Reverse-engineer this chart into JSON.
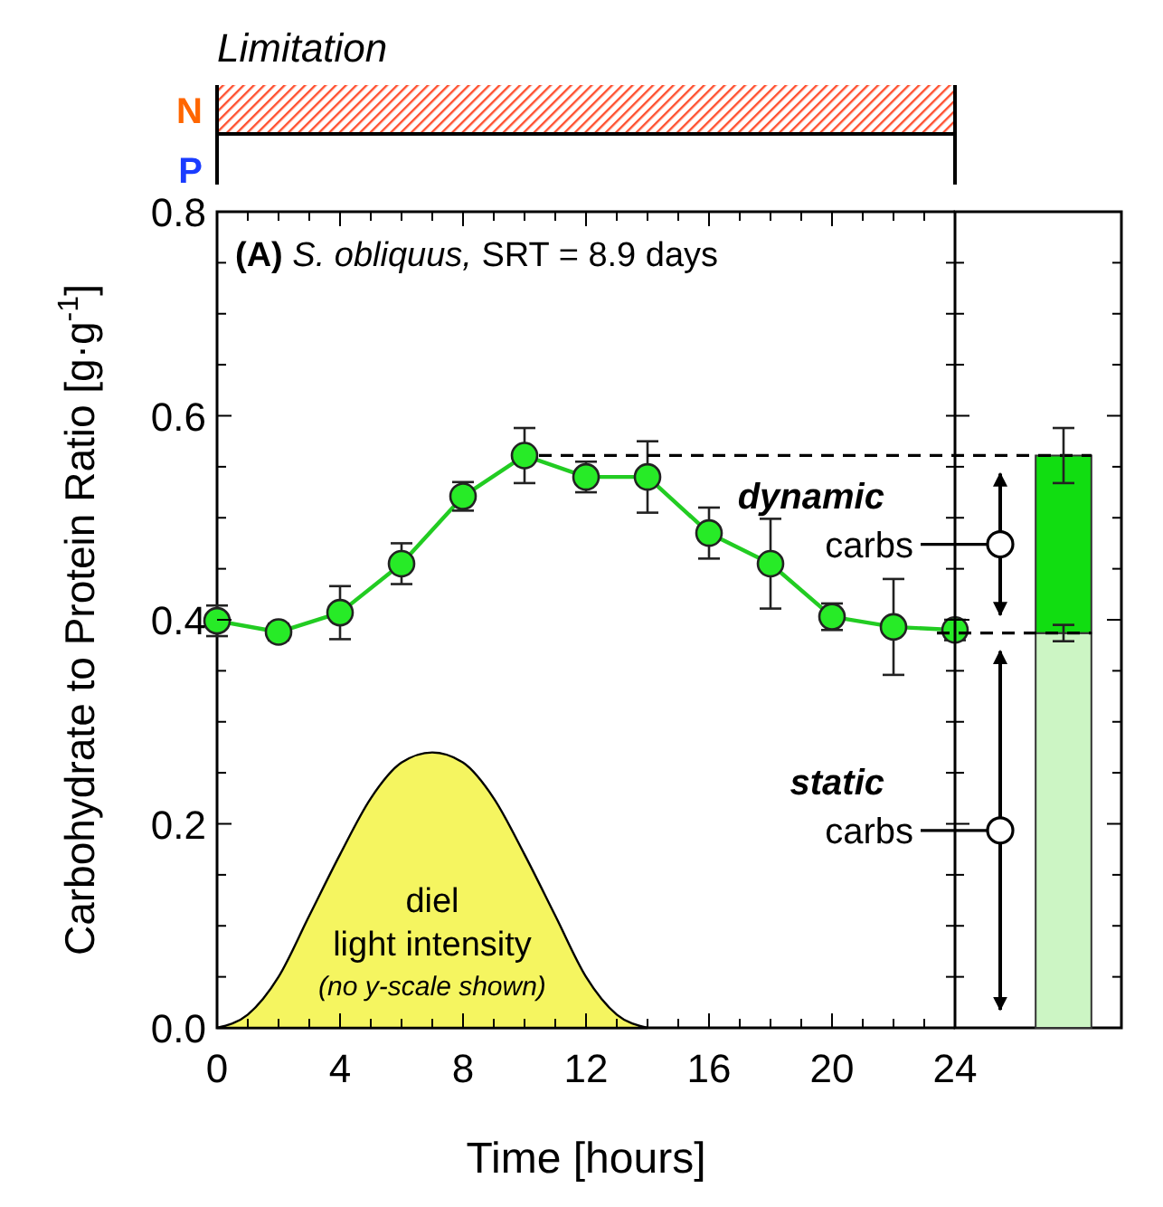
{
  "chart_data": [
    {
      "type": "line",
      "title": "(A) S. obliquus, SRT = 8.9 days",
      "xlabel": "Time [hours]",
      "ylabel": "Carbohydrate to Protein Ratio [g·g$^{-1}$]",
      "xlim": [
        0,
        24
      ],
      "ylim": [
        0,
        0.8
      ],
      "xticks": [
        0,
        {
          "value": 1,
          "label": null
        },
        {
          "value": 2,
          "label": null
        },
        {
          "value": 3,
          "label": null
        },
        4,
        {
          "value": 5,
          "label": null
        },
        {
          "value": 6,
          "label": null
        },
        {
          "value": 7,
          "label": null
        },
        8,
        {
          "value": 9,
          "label": null
        },
        {
          "value": 10,
          "label": null
        },
        {
          "value": 11,
          "label": null
        },
        12,
        {
          "value": 13,
          "label": null
        },
        {
          "value": 14,
          "label": null
        },
        {
          "value": 15,
          "label": null
        },
        16,
        {
          "value": 17,
          "label": null
        },
        {
          "value": 18,
          "label": null
        },
        {
          "value": 19,
          "label": null
        },
        20,
        {
          "value": 21,
          "label": null
        },
        {
          "value": 22,
          "label": null
        },
        {
          "value": 23,
          "label": null
        },
        24
      ],
      "yticks": [
        {
          "value": 0,
          "label": "0.0"
        },
        {
          "value": 0.05,
          "label": null
        },
        {
          "value": 0.1,
          "label": null
        },
        {
          "value": 0.15,
          "label": null
        },
        0.2,
        {
          "value": 0.25,
          "label": null
        },
        {
          "value": 0.3,
          "label": null
        },
        {
          "value": 0.35,
          "label": null
        },
        0.4,
        {
          "value": 0.45,
          "label": null
        },
        {
          "value": 0.5,
          "label": null
        },
        {
          "value": 0.55,
          "label": null
        },
        0.6,
        {
          "value": 0.65,
          "label": null
        },
        {
          "value": 0.7,
          "label": null
        },
        {
          "value": 0.75,
          "label": null
        },
        0.8
      ],
      "series": [
        {
          "type": "area",
          "name": "diel light intensity",
          "color": "#f5f560",
          "x": [
            0,
            1,
            2,
            3,
            4,
            5,
            6,
            7,
            8,
            9,
            10,
            11,
            12,
            13,
            14
          ],
          "values": [
            0,
            0.013,
            0.05,
            0.11,
            0.17,
            0.225,
            0.26,
            0.27,
            0.26,
            0.225,
            0.17,
            0.11,
            0.05,
            0.013,
            0
          ]
        },
        {
          "type": "line",
          "color": "#22cc22",
          "marker": "circle",
          "x": [
            0,
            2,
            4,
            6,
            8,
            10,
            12,
            14,
            16,
            18,
            20,
            22,
            24
          ],
          "values": [
            0.399,
            0.388,
            0.407,
            0.455,
            0.521,
            0.561,
            0.54,
            0.54,
            0.485,
            0.455,
            0.403,
            0.393,
            0.39
          ],
          "errors": [
            0.015,
            0.008,
            0.026,
            0.02,
            0.014,
            0.027,
            0.015,
            0.035,
            0.025,
            0.044,
            0.013,
            0.047,
            0.01
          ]
        }
      ],
      "annotations": [
        "Limitation",
        "N",
        "P",
        "(no y-scale shown)"
      ],
      "grid": false
    },
    {
      "type": "bar",
      "categories": [
        null
      ],
      "stacked": true,
      "ylim": [
        0,
        0.8
      ],
      "yticks": [
        0,
        {
          "value": 0.05,
          "label": null
        },
        {
          "value": 0.1,
          "label": null
        },
        {
          "value": 0.15,
          "label": null
        },
        0.2,
        {
          "value": 0.25,
          "label": null
        },
        {
          "value": 0.3,
          "label": null
        },
        {
          "value": 0.35,
          "label": null
        },
        0.4,
        {
          "value": 0.45,
          "label": null
        },
        {
          "value": 0.5,
          "label": null
        },
        {
          "value": 0.55,
          "label": null
        },
        0.6,
        {
          "value": 0.65,
          "label": null
        },
        {
          "value": 0.7,
          "label": null
        },
        {
          "value": 0.75,
          "label": null
        },
        0.8
      ],
      "tick_labels": false,
      "series": [
        {
          "color": "#ccf5c4",
          "values": [
            0.387
          ],
          "errors": [
            0.008
          ]
        },
        {
          "color": "#11dd11",
          "values": [
            0.174
          ],
          "errors": [
            0.027
          ]
        }
      ],
      "ref_lines": [
        {
          "axis": "y",
          "value": 0.561,
          "line_style": "dashed"
        },
        {
          "axis": "y",
          "value": 0.387,
          "line_style": "dashed"
        }
      ],
      "annotations": [
        "static carbs",
        "dynamic carbs"
      ],
      "grid": false
    }
  ]
}
